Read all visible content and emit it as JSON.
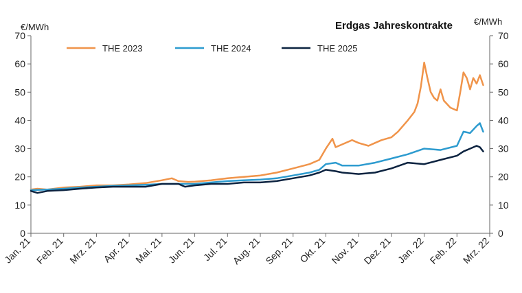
{
  "chart_data": {
    "type": "line",
    "title": "Erdgas Jahreskontrakte",
    "ylabel_left": "€/MWh",
    "ylabel_right": "€/MWh",
    "ylim": [
      0,
      70
    ],
    "yticks": [
      0,
      10,
      20,
      30,
      40,
      50,
      60,
      70
    ],
    "xlim": [
      0,
      14
    ],
    "categories": [
      "Jan. 21",
      "Feb. 21",
      "Mrz. 21",
      "Apr. 21",
      "Mai. 21",
      "Jun. 21",
      "Jul. 21",
      "Aug. 21",
      "Sep. 21",
      "Okt. 21",
      "Nov. 21",
      "Dez. 21",
      "Jan. 22",
      "Feb. 22",
      "Mrz. 22"
    ],
    "legend_position": "top",
    "series": [
      {
        "name": "THE 2023",
        "color": "#F0944A",
        "x": [
          0,
          0.2,
          0.5,
          1,
          1.5,
          2,
          2.5,
          3,
          3.5,
          4,
          4.3,
          4.5,
          4.8,
          5,
          5.5,
          6,
          6.5,
          7,
          7.5,
          8,
          8.5,
          8.8,
          9,
          9.2,
          9.3,
          9.5,
          9.8,
          10,
          10.3,
          10.5,
          10.7,
          11,
          11.2,
          11.5,
          11.7,
          11.8,
          11.9,
          12.0,
          12.1,
          12.2,
          12.3,
          12.4,
          12.5,
          12.6,
          12.8,
          13.0,
          13.1,
          13.2,
          13.3,
          13.4,
          13.5,
          13.6,
          13.7,
          13.8
        ],
        "values": [
          15.5,
          15.8,
          15.5,
          16.2,
          16.5,
          17.0,
          17.0,
          17.3,
          17.8,
          18.8,
          19.5,
          18.5,
          18.2,
          18.3,
          18.8,
          19.5,
          20.0,
          20.5,
          21.5,
          23.0,
          24.5,
          26.0,
          30.0,
          33.5,
          30.5,
          31.5,
          33.0,
          32.0,
          31.0,
          32.0,
          33.0,
          34.0,
          36.0,
          40.0,
          43.0,
          46.0,
          52.0,
          60.5,
          55.0,
          50.0,
          48.0,
          47.0,
          51.0,
          47.0,
          44.5,
          43.5,
          50.0,
          57.0,
          55.0,
          51.0,
          55.0,
          53.0,
          56.0,
          52.5
        ]
      },
      {
        "name": "THE 2024",
        "color": "#2D9BCF",
        "x": [
          0,
          0.5,
          1,
          1.5,
          2,
          2.5,
          3,
          3.5,
          4,
          4.5,
          5,
          5.5,
          6,
          6.5,
          7,
          7.5,
          8,
          8.5,
          8.8,
          9,
          9.3,
          9.5,
          10,
          10.5,
          11,
          11.5,
          12,
          12.5,
          13,
          13.2,
          13.4,
          13.6,
          13.7,
          13.8
        ],
        "values": [
          15.3,
          15.5,
          15.8,
          16.2,
          16.5,
          16.8,
          17.0,
          17.2,
          17.5,
          17.5,
          17.5,
          18.0,
          18.5,
          18.8,
          19.0,
          19.5,
          20.5,
          21.5,
          22.5,
          24.5,
          25.0,
          24.0,
          24.0,
          25.0,
          26.5,
          28.0,
          30.0,
          29.5,
          31.0,
          36.0,
          35.5,
          38.0,
          39.0,
          36.0
        ]
      },
      {
        "name": "THE 2025",
        "color": "#0C2340",
        "x": [
          0,
          0.2,
          0.5,
          1,
          1.5,
          2,
          2.5,
          3,
          3.5,
          4,
          4.5,
          4.7,
          5,
          5.5,
          6,
          6.5,
          7,
          7.5,
          8,
          8.5,
          8.8,
          9,
          9.3,
          9.5,
          10,
          10.5,
          11,
          11.5,
          12,
          12.5,
          13,
          13.2,
          13.4,
          13.6,
          13.7,
          13.8
        ],
        "values": [
          15.0,
          14.3,
          15.0,
          15.3,
          15.8,
          16.2,
          16.5,
          16.5,
          16.5,
          17.5,
          17.5,
          16.5,
          17.0,
          17.5,
          17.5,
          18.0,
          18.0,
          18.5,
          19.5,
          20.5,
          21.5,
          22.5,
          22.0,
          21.5,
          21.0,
          21.5,
          23.0,
          25.0,
          24.5,
          26.0,
          27.5,
          29.0,
          30.0,
          31.0,
          30.5,
          29.0
        ]
      }
    ]
  }
}
